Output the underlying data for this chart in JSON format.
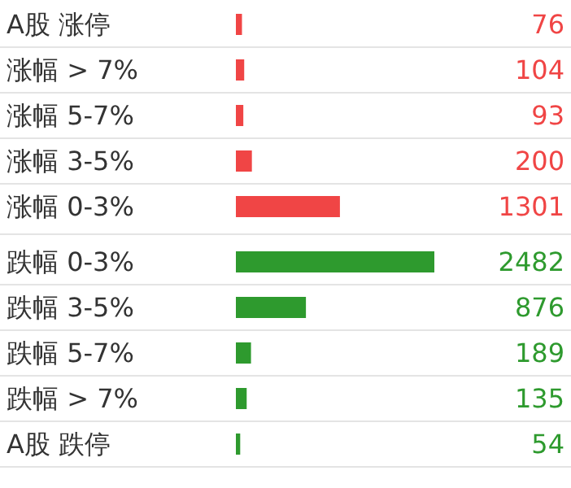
{
  "chart_data": {
    "type": "bar",
    "orientation": "horizontal",
    "data_labels": true,
    "categories": [
      "A股 涨停",
      "涨幅 > 7%",
      "涨幅 5-7%",
      "涨幅 3-5%",
      "涨幅 0-3%",
      "跌幅 0-3%",
      "跌幅 3-5%",
      "跌幅 5-7%",
      "跌幅 > 7%",
      "A股 跌停"
    ],
    "values": [
      76,
      104,
      93,
      200,
      1301,
      2482,
      876,
      189,
      135,
      54
    ],
    "colors": [
      "#f04545",
      "#f04545",
      "#f04545",
      "#f04545",
      "#f04545",
      "#2e9a2e",
      "#2e9a2e",
      "#2e9a2e",
      "#2e9a2e",
      "#2e9a2e"
    ]
  }
}
